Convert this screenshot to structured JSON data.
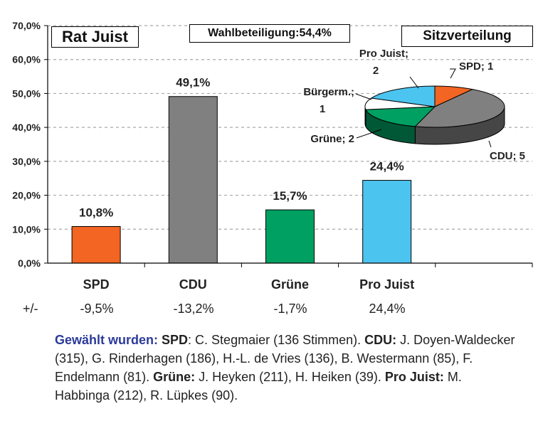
{
  "chart_title": "Rat Juist",
  "turnout_label": "Wahlbeteiligung:54,4%",
  "seats_title": "Sitzverteilung",
  "chart_data": [
    {
      "type": "bar",
      "title": "Rat Juist",
      "categories": [
        "SPD",
        "CDU",
        "Grüne",
        "Pro Juist"
      ],
      "values": [
        10.8,
        49.1,
        15.7,
        24.4
      ],
      "value_labels": [
        "10,8%",
        "49,1%",
        "15,7%",
        "24,4%"
      ],
      "colors": [
        "#f26522",
        "#808080",
        "#00a063",
        "#4cc4f0"
      ],
      "ylim": [
        0,
        70
      ],
      "yticks": [
        "0,0%",
        "10,0%",
        "20,0%",
        "30,0%",
        "40,0%",
        "50,0%",
        "60,0%",
        "70,0%"
      ],
      "grid": true,
      "xlabel": "",
      "ylabel": ""
    },
    {
      "type": "pie",
      "title": "Sitzverteilung",
      "categories": [
        "SPD",
        "CDU",
        "Grüne",
        "Bürgerm.",
        "Pro Juist"
      ],
      "values": [
        1,
        5,
        2,
        1,
        2
      ],
      "slice_labels": [
        "SPD; 1",
        "CDU; 5",
        "Grüne; 2",
        "Bürgerm.;",
        "Pro Juist;"
      ],
      "slice_label_values": [
        "",
        "",
        "",
        "1",
        "2"
      ],
      "colors": [
        "#f26522",
        "#808080",
        "#00a063",
        "#ffffff",
        "#4cc4f0"
      ]
    }
  ],
  "changes": {
    "label": "+/-",
    "values": [
      "-9,5%",
      "-13,2%",
      "-1,7%",
      "24,4%"
    ]
  },
  "elected": {
    "lead": "Gewählt wurden",
    "colon": ": ",
    "spd_label": "SPD",
    "spd_text": ": C. Stegmaier (136 Stimmen). ",
    "cdu_label": "CDU:",
    "cdu_text": " J. Doyen-Waldecker (315), G. Rinderhagen (186), H.-L. de Vries (136), B. Westermann (85), F. Endelmann (81). ",
    "gruene_label": "Grüne:",
    "gruene_text": " J. Heyken (211), H. Heiken (39). ",
    "projuist_label": "Pro Juist:",
    "projuist_text": " M. Habbinga (212), R. Lüpkes (90)."
  }
}
